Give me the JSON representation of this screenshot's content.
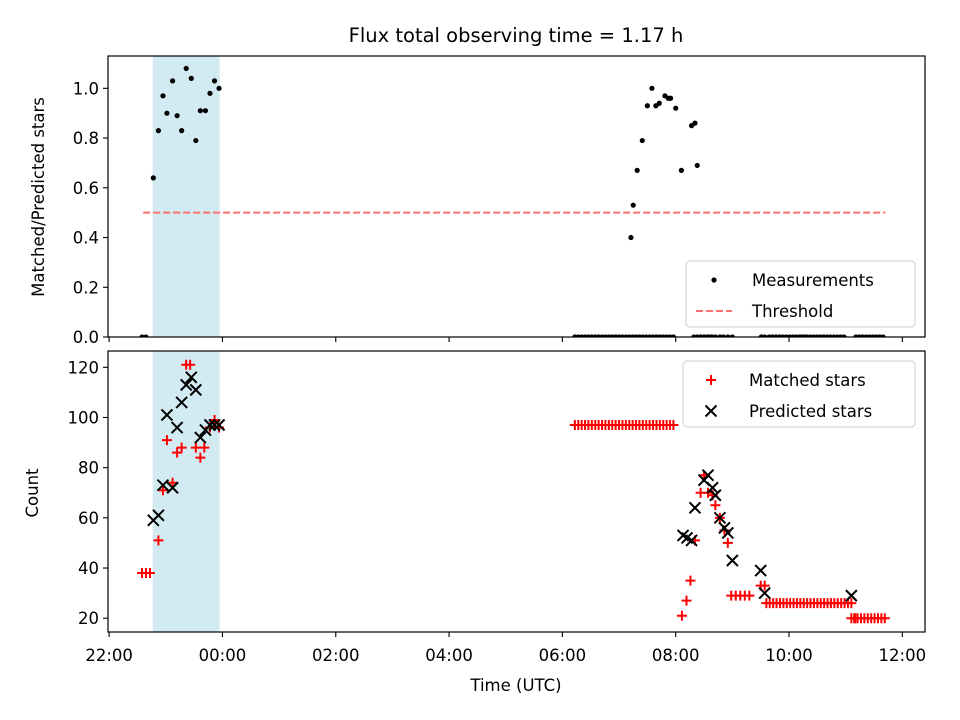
{
  "chart_data": {
    "title": "Flux total observing time = 1.17 h",
    "xlabel": "Time (UTC)",
    "x_unit": "hours",
    "x_ticks": [
      {
        "value": 22,
        "label": "22:00"
      },
      {
        "value": 24,
        "label": "00:00"
      },
      {
        "value": 26,
        "label": "02:00"
      },
      {
        "value": 28,
        "label": "04:00"
      },
      {
        "value": 30,
        "label": "06:00"
      },
      {
        "value": 32,
        "label": "08:00"
      },
      {
        "value": 34,
        "label": "10:00"
      },
      {
        "value": 36,
        "label": "12:00"
      }
    ],
    "xlim": [
      21.98,
      36.4
    ],
    "shaded_region": {
      "x_start": 22.77,
      "x_end": 23.95,
      "color": "#add8e6"
    },
    "top": {
      "type": "scatter",
      "ylabel": "Matched/Predicted stars",
      "ylim": [
        0,
        1.13
      ],
      "yticks": [
        0.0,
        0.2,
        0.4,
        0.6,
        0.8,
        1.0
      ],
      "legend_position": "bottom-right",
      "series": [
        {
          "name": "Measurements",
          "color": "#000000",
          "marker": "dot",
          "x": [
            22.58,
            22.65,
            22.78,
            22.87,
            22.95,
            23.02,
            23.12,
            23.2,
            23.28,
            23.36,
            23.45,
            23.53,
            23.61,
            23.7,
            23.78,
            23.86,
            23.94,
            31.21,
            31.25,
            31.32,
            31.41,
            31.5,
            31.58,
            31.65,
            31.71,
            31.81,
            31.87,
            31.91,
            32.0,
            32.1,
            32.28,
            32.34,
            32.38,
            32.44,
            32.5,
            32.57,
            32.64,
            32.7,
            32.78,
            32.84,
            32.92,
            33.0,
            33.51,
            33.57,
            34.2,
            34.26
          ],
          "y": [
            0.0,
            0.0,
            0.64,
            0.83,
            0.97,
            0.9,
            1.03,
            0.89,
            0.83,
            1.08,
            1.04,
            0.79,
            0.91,
            0.91,
            0.98,
            1.03,
            1.0,
            0.4,
            0.53,
            0.67,
            0.79,
            0.93,
            1.0,
            0.93,
            0.94,
            0.97,
            0.96,
            0.96,
            0.92,
            0.67,
            0.85,
            0.86,
            0.69,
            0.0,
            0.0,
            0.0,
            0.0,
            0.0,
            0.0,
            0.0,
            0.0,
            0.0,
            0.0,
            0.0,
            0.0,
            0.0
          ],
          "zero_runs": [
            {
              "x_start": 30.22,
              "x_end": 32.0
            },
            {
              "x_start": 32.32,
              "x_end": 32.66
            },
            {
              "x_start": 33.65,
              "x_end": 35.0
            },
            {
              "x_start": 35.18,
              "x_end": 35.7
            }
          ]
        },
        {
          "name": "Threshold",
          "color": "#ff7070",
          "style": "dashed",
          "x": [
            22.6,
            35.7
          ],
          "y": [
            0.5,
            0.5
          ]
        }
      ]
    },
    "bottom": {
      "type": "scatter",
      "ylabel": "Count",
      "ylim": [
        14.5,
        126.5
      ],
      "yticks": [
        20,
        40,
        60,
        80,
        100,
        120
      ],
      "legend_position": "top-right",
      "series": [
        {
          "name": "Matched stars",
          "color": "#ff0000",
          "marker": "plus",
          "x": [
            22.58,
            22.65,
            22.72,
            22.87,
            22.95,
            23.02,
            23.12,
            23.2,
            23.28,
            23.36,
            23.43,
            23.53,
            23.61,
            23.68,
            23.78,
            23.86,
            23.94,
            32.11,
            32.19,
            32.26,
            32.34,
            32.44,
            32.5,
            32.57,
            32.65,
            32.7,
            32.78,
            32.86,
            32.92,
            32.98,
            33.06,
            33.14,
            33.22,
            33.3,
            33.5,
            33.57,
            35.1,
            35.17
          ],
          "y": [
            38,
            38,
            38,
            51,
            71,
            91,
            74,
            86,
            88,
            121,
            121,
            88,
            84,
            88,
            96,
            99,
            96,
            21,
            27,
            35,
            51,
            70,
            77,
            70,
            69,
            65,
            60,
            55,
            50,
            29,
            29,
            29,
            29,
            29,
            33,
            33,
            20,
            20
          ],
          "flat_runs": [
            {
              "x_start": 30.22,
              "x_end": 31.98,
              "y": 97
            },
            {
              "x_start": 33.6,
              "x_end": 35.1,
              "y": 26
            },
            {
              "x_start": 35.15,
              "x_end": 35.7,
              "y": 20
            }
          ]
        },
        {
          "name": "Predicted stars",
          "color": "#000000",
          "marker": "x",
          "x": [
            22.78,
            22.87,
            22.95,
            23.02,
            23.12,
            23.2,
            23.28,
            23.36,
            23.45,
            23.53,
            23.61,
            23.7,
            23.78,
            23.86,
            23.94,
            32.13,
            32.2,
            32.28,
            32.34,
            32.5,
            32.57,
            32.65,
            32.7,
            32.78,
            32.86,
            32.92,
            33.0,
            33.5,
            33.57,
            35.1
          ],
          "y": [
            59,
            61,
            73,
            101,
            72,
            96,
            106,
            113,
            116,
            111,
            92,
            95,
            97,
            97,
            97,
            53,
            52,
            51,
            64,
            75,
            77,
            72,
            69,
            60,
            56,
            54,
            43,
            39,
            30,
            29
          ]
        }
      ]
    }
  }
}
